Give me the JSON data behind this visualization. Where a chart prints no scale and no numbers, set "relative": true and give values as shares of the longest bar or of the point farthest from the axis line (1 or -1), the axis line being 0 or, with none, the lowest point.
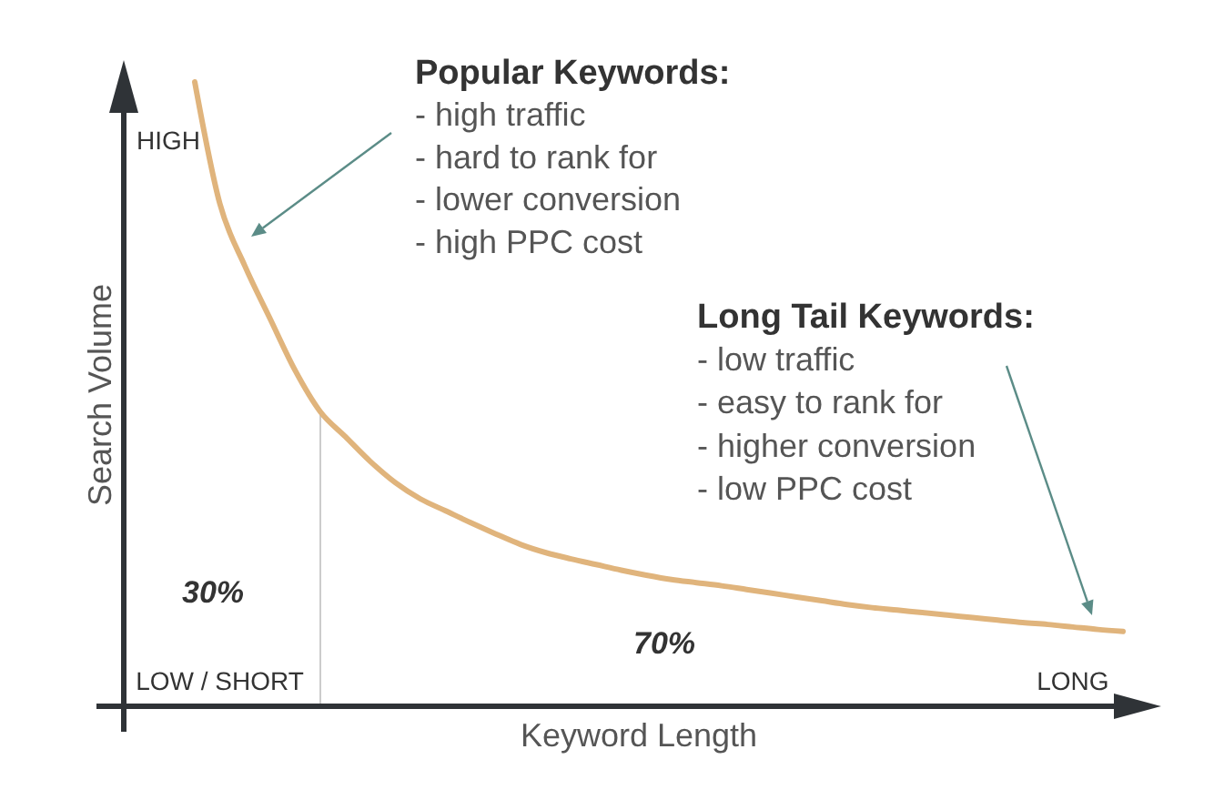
{
  "chart_data": {
    "type": "line",
    "relative": true,
    "xlabel": "Keyword Length",
    "ylabel": "Search Volume",
    "categories": [
      null,
      "LOW / SHORT",
      null,
      null,
      null,
      null,
      null,
      null,
      null,
      null,
      null,
      null,
      null,
      null,
      null,
      null,
      null,
      null,
      null,
      null,
      null,
      null,
      null,
      null,
      null,
      null,
      null,
      null,
      null,
      null,
      null,
      null,
      null,
      null,
      null,
      "LONG",
      null,
      null
    ],
    "series": [
      {
        "color": "#e0b47c",
        "values": [
          1.0,
          0.805,
          0.705,
          0.621,
          0.538,
          0.472,
          0.432,
          0.392,
          0.358,
          0.332,
          0.313,
          0.294,
          0.276,
          0.259,
          0.246,
          0.236,
          0.227,
          0.218,
          0.21,
          0.203,
          0.198,
          0.193,
          0.187,
          0.181,
          0.175,
          0.169,
          0.163,
          0.158,
          0.154,
          0.15,
          0.146,
          0.142,
          0.138,
          0.134,
          0.131,
          0.127,
          0.123,
          0.12
        ]
      }
    ],
    "annotations": [
      "HIGH",
      "Popular Keywords:\n- high traffic\n- hard to rank for\n- lower conversion\n- high PPC cost",
      "Long Tail Keywords:\n- low traffic\n- easy to rank for\n- higher conversion\n- low PPC cost",
      "30%",
      "70%"
    ]
  }
}
